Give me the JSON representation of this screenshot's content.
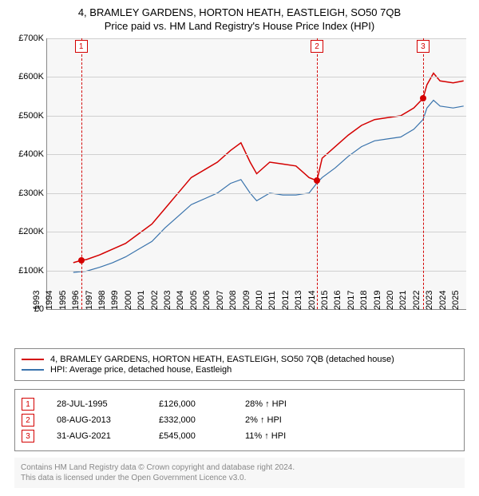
{
  "title": "4, BRAMLEY GARDENS, HORTON HEATH, EASTLEIGH, SO50 7QB",
  "subtitle": "Price paid vs. HM Land Registry's House Price Index (HPI)",
  "chart": {
    "type": "line",
    "background_color": "#f7f7f7",
    "grid_color": "#d0d0d0",
    "ylim": [
      0,
      700000
    ],
    "ytick_step": 100000,
    "ytick_labels": [
      "£0",
      "£100K",
      "£200K",
      "£300K",
      "£400K",
      "£500K",
      "£600K",
      "£700K"
    ],
    "xlim": [
      1993,
      2025
    ],
    "xticks": [
      1993,
      1994,
      1995,
      1996,
      1997,
      1998,
      1999,
      2000,
      2001,
      2002,
      2003,
      2004,
      2005,
      2006,
      2007,
      2008,
      2009,
      2010,
      2011,
      2012,
      2013,
      2014,
      2015,
      2016,
      2017,
      2018,
      2019,
      2020,
      2021,
      2022,
      2023,
      2024,
      2025
    ],
    "series": [
      {
        "name": "price_paid",
        "label": "4, BRAMLEY GARDENS, HORTON HEATH, EASTLEIGH, SO50 7QB (detached house)",
        "color": "#d40000",
        "line_width": 1.5,
        "data": [
          [
            1995.0,
            120000
          ],
          [
            1995.6,
            126000
          ],
          [
            1996,
            128000
          ],
          [
            1997,
            140000
          ],
          [
            1998,
            155000
          ],
          [
            1999,
            170000
          ],
          [
            2000,
            195000
          ],
          [
            2001,
            220000
          ],
          [
            2002,
            260000
          ],
          [
            2003,
            300000
          ],
          [
            2004,
            340000
          ],
          [
            2005,
            360000
          ],
          [
            2006,
            380000
          ],
          [
            2007,
            410000
          ],
          [
            2007.8,
            430000
          ],
          [
            2008.5,
            380000
          ],
          [
            2009,
            350000
          ],
          [
            2010,
            380000
          ],
          [
            2011,
            375000
          ],
          [
            2012,
            370000
          ],
          [
            2013,
            340000
          ],
          [
            2013.6,
            332000
          ],
          [
            2014,
            390000
          ],
          [
            2015,
            420000
          ],
          [
            2016,
            450000
          ],
          [
            2017,
            475000
          ],
          [
            2018,
            490000
          ],
          [
            2019,
            495000
          ],
          [
            2020,
            500000
          ],
          [
            2021,
            520000
          ],
          [
            2021.7,
            545000
          ],
          [
            2022,
            580000
          ],
          [
            2022.5,
            610000
          ],
          [
            2023,
            590000
          ],
          [
            2024,
            585000
          ],
          [
            2024.8,
            590000
          ]
        ]
      },
      {
        "name": "hpi",
        "label": "HPI: Average price, detached house, Eastleigh",
        "color": "#3973ac",
        "line_width": 1.2,
        "data": [
          [
            1995.0,
            95000
          ],
          [
            1996,
            98000
          ],
          [
            1997,
            108000
          ],
          [
            1998,
            120000
          ],
          [
            1999,
            135000
          ],
          [
            2000,
            155000
          ],
          [
            2001,
            175000
          ],
          [
            2002,
            210000
          ],
          [
            2003,
            240000
          ],
          [
            2004,
            270000
          ],
          [
            2005,
            285000
          ],
          [
            2006,
            300000
          ],
          [
            2007,
            325000
          ],
          [
            2007.8,
            335000
          ],
          [
            2008.5,
            300000
          ],
          [
            2009,
            280000
          ],
          [
            2010,
            300000
          ],
          [
            2011,
            295000
          ],
          [
            2012,
            295000
          ],
          [
            2013,
            300000
          ],
          [
            2013.6,
            326000
          ],
          [
            2014,
            340000
          ],
          [
            2015,
            365000
          ],
          [
            2016,
            395000
          ],
          [
            2017,
            420000
          ],
          [
            2018,
            435000
          ],
          [
            2019,
            440000
          ],
          [
            2020,
            445000
          ],
          [
            2021,
            465000
          ],
          [
            2021.7,
            490000
          ],
          [
            2022,
            520000
          ],
          [
            2022.5,
            540000
          ],
          [
            2023,
            525000
          ],
          [
            2024,
            520000
          ],
          [
            2024.8,
            525000
          ]
        ]
      }
    ],
    "markers": [
      {
        "n": "1",
        "x": 1995.6,
        "y": 126000,
        "color": "#d40000"
      },
      {
        "n": "2",
        "x": 2013.6,
        "y": 332000,
        "color": "#d40000"
      },
      {
        "n": "3",
        "x": 2021.7,
        "y": 545000,
        "color": "#d40000"
      }
    ]
  },
  "legend": {
    "items": [
      {
        "color": "#d40000",
        "label": "4, BRAMLEY GARDENS, HORTON HEATH, EASTLEIGH, SO50 7QB (detached house)"
      },
      {
        "color": "#3973ac",
        "label": "HPI: Average price, detached house, Eastleigh"
      }
    ]
  },
  "transactions": [
    {
      "n": "1",
      "color": "#d40000",
      "date": "28-JUL-1995",
      "price": "£126,000",
      "diff": "28% ↑ HPI"
    },
    {
      "n": "2",
      "color": "#d40000",
      "date": "08-AUG-2013",
      "price": "£332,000",
      "diff": "2% ↑ HPI"
    },
    {
      "n": "3",
      "color": "#d40000",
      "date": "31-AUG-2021",
      "price": "£545,000",
      "diff": "11% ↑ HPI"
    }
  ],
  "footer": {
    "line1": "Contains HM Land Registry data © Crown copyright and database right 2024.",
    "line2": "This data is licensed under the Open Government Licence v3.0."
  }
}
